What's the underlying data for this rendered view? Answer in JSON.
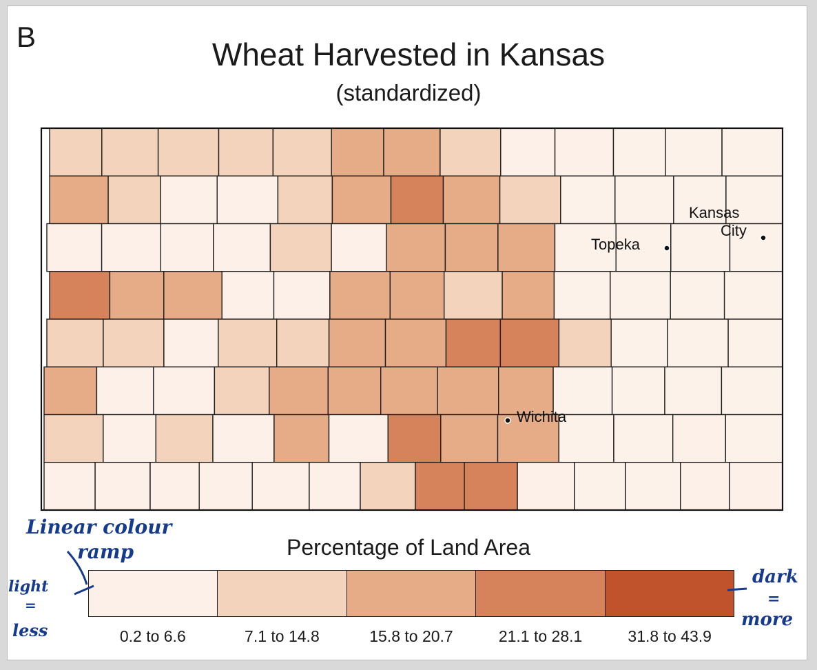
{
  "panel_letter": "B",
  "title": "Wheat Harvested in Kansas",
  "subtitle": "(standardized)",
  "legend": {
    "title": "Percentage of Land Area",
    "classes": [
      {
        "label": "0.2 to 6.6",
        "color": "#fdf0e8"
      },
      {
        "label": "7.1 to 14.8",
        "color": "#f3d3bb"
      },
      {
        "label": "15.8 to 20.7",
        "color": "#e6ab87"
      },
      {
        "label": "21.1 to 28.1",
        "color": "#d6825a"
      },
      {
        "label": "31.8 to 43.9",
        "color": "#c0532b"
      }
    ]
  },
  "cities": [
    {
      "name": "Topeka"
    },
    {
      "name": "Wichita"
    },
    {
      "name": "Kansas",
      "name2": "City"
    }
  ],
  "annotations": {
    "ramp_line1": "Linear colour",
    "ramp_line2": "ramp",
    "light_word": "light",
    "light_eq": "=",
    "less_word": "less",
    "dark_word": "dark",
    "dark_eq": "=",
    "more_word": "more"
  },
  "counties": [
    [
      1,
      1,
      1,
      1,
      1,
      2,
      2,
      1,
      0,
      0,
      -1,
      -1,
      -1
    ],
    [
      2,
      1,
      0,
      0,
      1,
      2,
      3,
      2,
      1,
      -1,
      -1,
      -1,
      -1
    ],
    [
      0,
      0,
      0,
      0,
      1,
      0,
      2,
      2,
      2,
      -1,
      -1,
      -1,
      -1
    ],
    [
      3,
      2,
      2,
      0,
      0,
      2,
      2,
      1,
      2,
      -1,
      -1,
      -1,
      -1
    ],
    [
      1,
      1,
      0,
      1,
      1,
      2,
      2,
      3,
      3,
      1,
      -1,
      -1,
      -1
    ],
    [
      2,
      0,
      0,
      1,
      2,
      2,
      2,
      2,
      2,
      -1,
      -1,
      -1,
      -1
    ],
    [
      1,
      0,
      1,
      0,
      2,
      0,
      3,
      2,
      2,
      -1,
      -1,
      0,
      -1
    ],
    [
      0,
      0,
      0,
      0,
      0,
      0,
      1,
      3,
      3,
      0,
      -1,
      -1,
      0,
      0
    ]
  ]
}
